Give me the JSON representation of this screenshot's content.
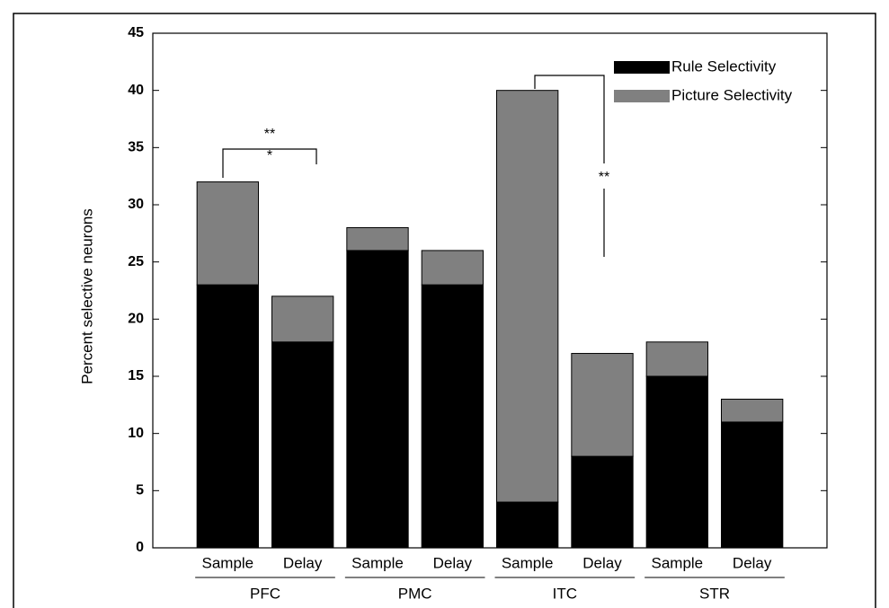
{
  "chart_data": {
    "type": "bar",
    "stacked": true,
    "categories": [
      "Sample",
      "Delay",
      "Sample",
      "Delay",
      "Sample",
      "Delay",
      "Sample",
      "Delay"
    ],
    "groups": [
      "PFC",
      "PMC",
      "ITC",
      "STR"
    ],
    "series": [
      {
        "name": "Rule Selectivity",
        "color": "#000000",
        "values": [
          23,
          18,
          26,
          23,
          4,
          8,
          15,
          11
        ]
      },
      {
        "name": "Picture Selectivity",
        "color": "#808080",
        "values": [
          9,
          4,
          2,
          3,
          36,
          9,
          3,
          2
        ]
      }
    ],
    "ylabel": "Percent selective neurons",
    "ylim": [
      0,
      45
    ],
    "yticks": [
      0,
      5,
      10,
      15,
      20,
      25,
      30,
      35,
      40,
      45
    ],
    "annotations": [
      "**",
      "*",
      "**"
    ]
  }
}
